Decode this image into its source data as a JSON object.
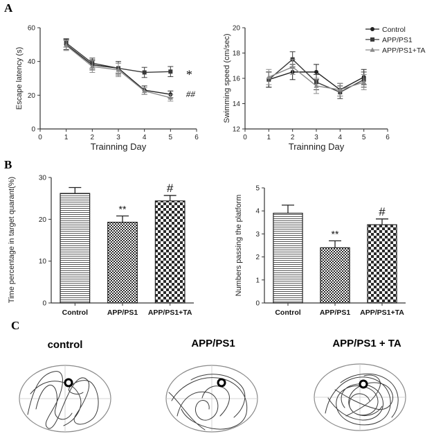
{
  "panels": {
    "A": "A",
    "B": "B",
    "C": "C"
  },
  "colors": {
    "control": "#222222",
    "app": "#3a3a3a",
    "ta": "#8a8a8a",
    "axis": "#333333",
    "bar_fill": "#ffffff"
  },
  "chart_data": [
    {
      "id": "escape_latency",
      "type": "line",
      "xlabel": "Trainning   Day",
      "ylabel": "Escape latency (s)",
      "xlim": [
        0,
        6
      ],
      "ylim": [
        0,
        60
      ],
      "xticks": [
        0,
        1,
        2,
        3,
        4,
        5,
        6
      ],
      "yticks": [
        0,
        20,
        40,
        60
      ],
      "x": [
        1,
        2,
        3,
        4,
        5
      ],
      "series": [
        {
          "name": "Control",
          "marker": "circle",
          "values": [
            50,
            38,
            36,
            23,
            20.5
          ],
          "errors": [
            3,
            3,
            3,
            2.5,
            2
          ]
        },
        {
          "name": "APP/PS1",
          "marker": "square",
          "values": [
            51,
            39,
            36,
            33.5,
            34
          ],
          "errors": [
            2.5,
            3,
            4,
            3,
            3
          ]
        },
        {
          "name": "APP/PS1+TA",
          "marker": "triangle",
          "values": [
            49.5,
            37,
            35,
            22.5,
            18.5
          ],
          "errors": [
            3,
            3.5,
            4,
            2,
            2
          ]
        }
      ],
      "annotations": [
        {
          "text": "*",
          "x": 5.6,
          "y": 33.5
        },
        {
          "text": "##",
          "x": 5.6,
          "y": 21
        }
      ]
    },
    {
      "id": "swimming_speed",
      "type": "line",
      "xlabel": "Trainning   Day",
      "ylabel": "Swimming speed (cm/sec)",
      "xlim": [
        0,
        6
      ],
      "ylim": [
        12,
        20
      ],
      "xticks": [
        0,
        1,
        2,
        3,
        4,
        5,
        6
      ],
      "yticks": [
        12,
        14,
        16,
        18,
        20
      ],
      "x": [
        1,
        2,
        3,
        4,
        5
      ],
      "legend_position": "top-right",
      "series": [
        {
          "name": "Control",
          "marker": "circle",
          "values": [
            15.9,
            16.5,
            16.5,
            15.1,
            16.1
          ],
          "errors": [
            0.6,
            0.6,
            0.6,
            0.5,
            0.6
          ]
        },
        {
          "name": "APP/PS1",
          "marker": "square",
          "values": [
            15.9,
            17.5,
            15.7,
            14.9,
            15.9
          ],
          "errors": [
            0.6,
            0.6,
            0.6,
            0.5,
            0.6
          ]
        },
        {
          "name": "APP/PS1+TA",
          "marker": "triangle",
          "values": [
            16.1,
            16.9,
            15.4,
            15.1,
            15.7
          ],
          "errors": [
            0.6,
            0.6,
            0.6,
            0.5,
            0.6
          ]
        }
      ]
    },
    {
      "id": "time_percentage",
      "type": "bar",
      "ylabel": "Time percentage in target quarant(%)",
      "ylim": [
        0,
        30
      ],
      "yticks": [
        0,
        10,
        20,
        30
      ],
      "categories": [
        "Control",
        "APP/PS1",
        "APP/PS1+TA"
      ],
      "values": [
        26.2,
        19.3,
        24.4
      ],
      "errors": [
        1.4,
        1.5,
        1.3
      ],
      "bar_labels": [
        "",
        "**",
        "#"
      ]
    },
    {
      "id": "numbers_passing",
      "type": "bar",
      "ylabel": "Numbers passing the platform",
      "ylim": [
        0,
        5
      ],
      "yticks": [
        0,
        1,
        2,
        3,
        4,
        5
      ],
      "categories": [
        "Control",
        "APP/PS1",
        "APP/PS1+TA"
      ],
      "values": [
        3.9,
        2.4,
        3.4
      ],
      "errors": [
        0.35,
        0.3,
        0.25
      ],
      "bar_labels": [
        "",
        "**",
        "#"
      ]
    }
  ],
  "track_titles": [
    "control",
    "APP/PS1",
    "APP/PS1 + TA"
  ]
}
